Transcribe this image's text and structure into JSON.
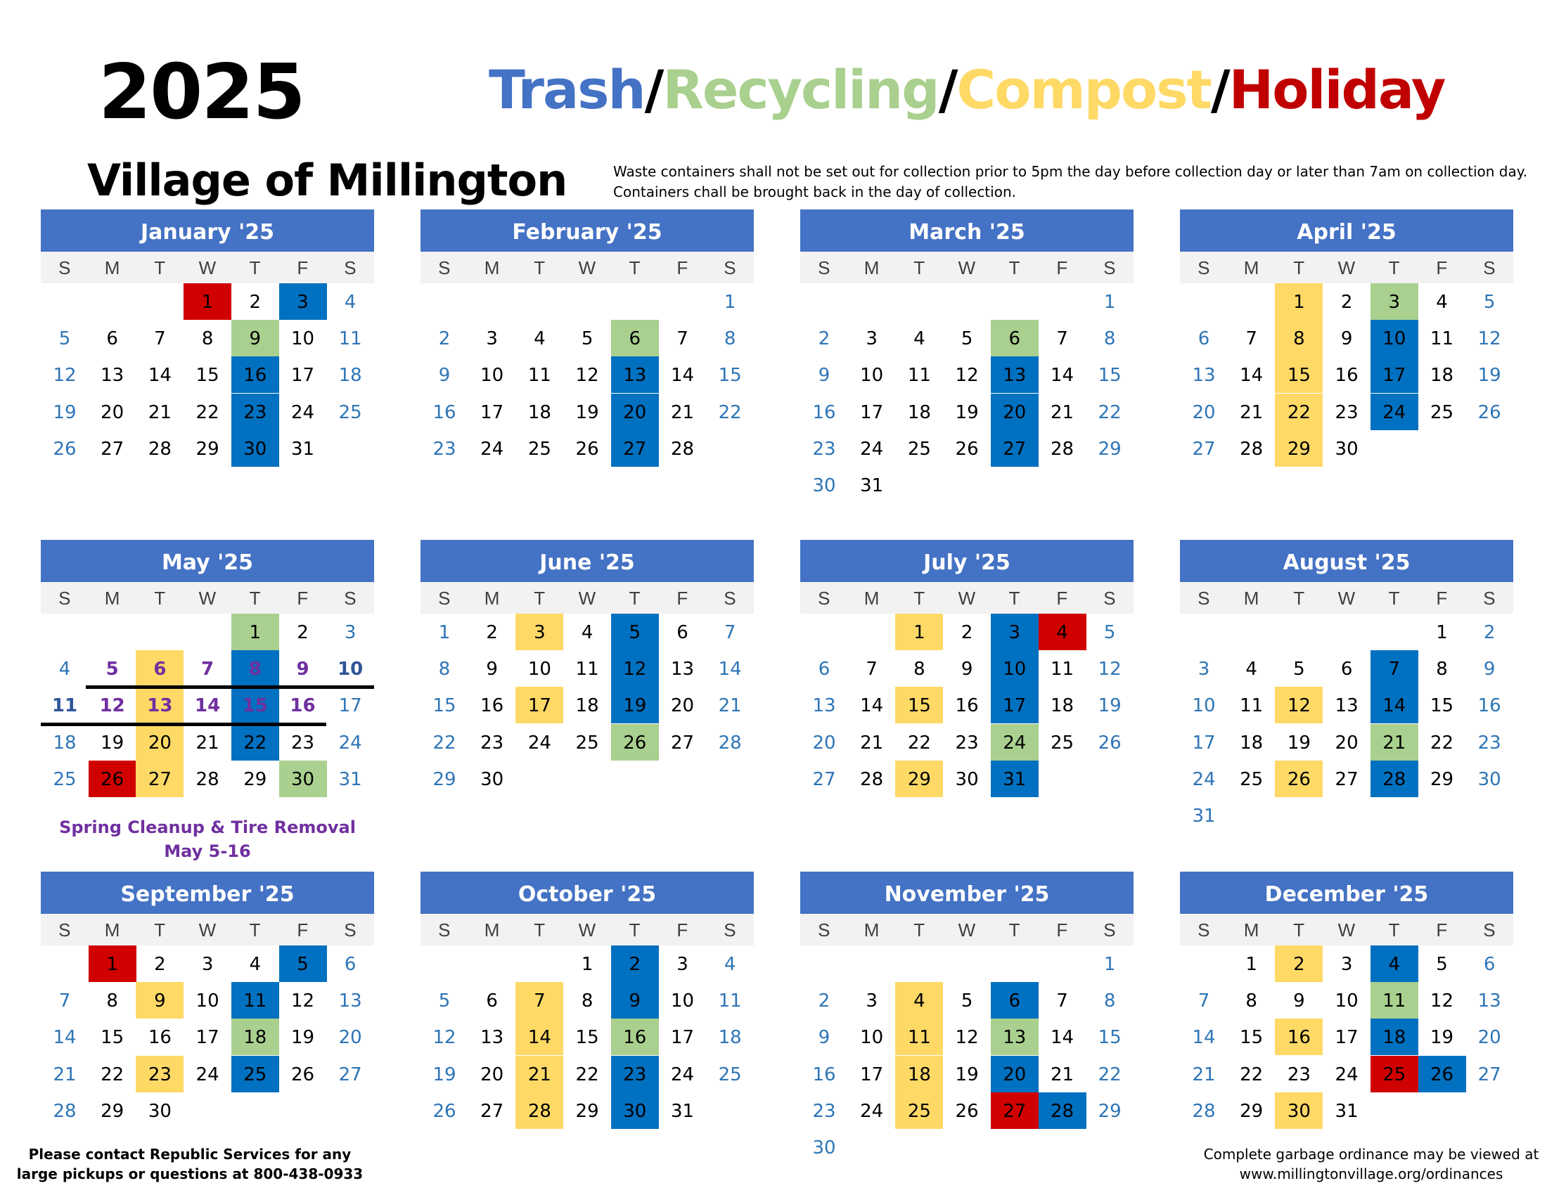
{
  "header": {
    "year": "2025",
    "village": "Village of Millington",
    "legend": [
      {
        "label": "Trash",
        "color": "#4472c4"
      },
      {
        "label": "Recycling",
        "color": "#a9d08e"
      },
      {
        "label": "Compost",
        "color": "#ffd966"
      },
      {
        "label": "Holiday",
        "color": "#c00000"
      }
    ],
    "legend_separator": "/",
    "notice": "Waste containers shall not be set out for collection prior to 5pm the day before collection day or later than 7am on collection day. Containers chall be brought back in the day of collection."
  },
  "weekday_labels": [
    "S",
    "M",
    "T",
    "W",
    "T",
    "F",
    "S"
  ],
  "months": [
    {
      "title": "January '25",
      "start": 3,
      "days": 31,
      "trash": [
        3,
        16,
        23,
        30
      ],
      "recycling": [
        9
      ],
      "compost": [],
      "holiday": [
        1
      ]
    },
    {
      "title": "February '25",
      "start": 6,
      "days": 28,
      "trash": [
        13,
        20,
        27
      ],
      "recycling": [
        6
      ],
      "compost": [],
      "holiday": []
    },
    {
      "title": "March '25",
      "start": 6,
      "days": 31,
      "trash": [
        13,
        20,
        27
      ],
      "recycling": [
        6
      ],
      "compost": [],
      "holiday": []
    },
    {
      "title": "April '25",
      "start": 2,
      "days": 30,
      "trash": [
        10,
        17,
        24
      ],
      "recycling": [
        3
      ],
      "compost": [
        1,
        8,
        15,
        22,
        29
      ],
      "holiday": []
    },
    {
      "title": "May '25",
      "start": 4,
      "days": 31,
      "trash": [
        8,
        15,
        22
      ],
      "recycling": [
        1,
        30
      ],
      "compost": [
        6,
        13,
        20,
        27
      ],
      "holiday": [
        26
      ],
      "cleanup": [
        5,
        6,
        7,
        8,
        9,
        10,
        11,
        12,
        13,
        14,
        15,
        16
      ]
    },
    {
      "title": "June '25",
      "start": 0,
      "days": 30,
      "trash": [
        5,
        12,
        19
      ],
      "recycling": [
        26
      ],
      "compost": [
        3,
        17
      ],
      "holiday": []
    },
    {
      "title": "July '25",
      "start": 2,
      "days": 31,
      "trash": [
        3,
        10,
        17,
        31
      ],
      "recycling": [
        24
      ],
      "compost": [
        1,
        15,
        29
      ],
      "holiday": [
        4
      ]
    },
    {
      "title": "August '25",
      "start": 5,
      "days": 31,
      "trash": [
        7,
        14,
        28
      ],
      "recycling": [
        21
      ],
      "compost": [
        12,
        26
      ],
      "holiday": []
    },
    {
      "title": "September '25",
      "start": 1,
      "days": 30,
      "trash": [
        5,
        11,
        25
      ],
      "recycling": [
        18
      ],
      "compost": [
        9,
        23
      ],
      "holiday": [
        1
      ]
    },
    {
      "title": "October '25",
      "start": 3,
      "days": 31,
      "trash": [
        2,
        9,
        23,
        30
      ],
      "recycling": [
        16
      ],
      "compost": [
        7,
        14,
        21,
        28
      ],
      "holiday": []
    },
    {
      "title": "November '25",
      "start": 6,
      "days": 30,
      "trash": [
        6,
        20,
        28
      ],
      "recycling": [
        13
      ],
      "compost": [
        4,
        11,
        18,
        25
      ],
      "holiday": [
        27
      ]
    },
    {
      "title": "December '25",
      "start": 1,
      "days": 31,
      "trash": [
        4,
        18,
        26
      ],
      "recycling": [
        11
      ],
      "compost": [
        2,
        16,
        30
      ],
      "holiday": [
        25
      ]
    }
  ],
  "cleanup_note": "Spring Cleanup & Tire Removal May 5-16",
  "footer": {
    "left": "Please contact Republic Services for any large pickups or questions at 800-438-0933",
    "right": "Complete garbage ordinance may be viewed at www.millingtonvillage.org/ordinances"
  }
}
